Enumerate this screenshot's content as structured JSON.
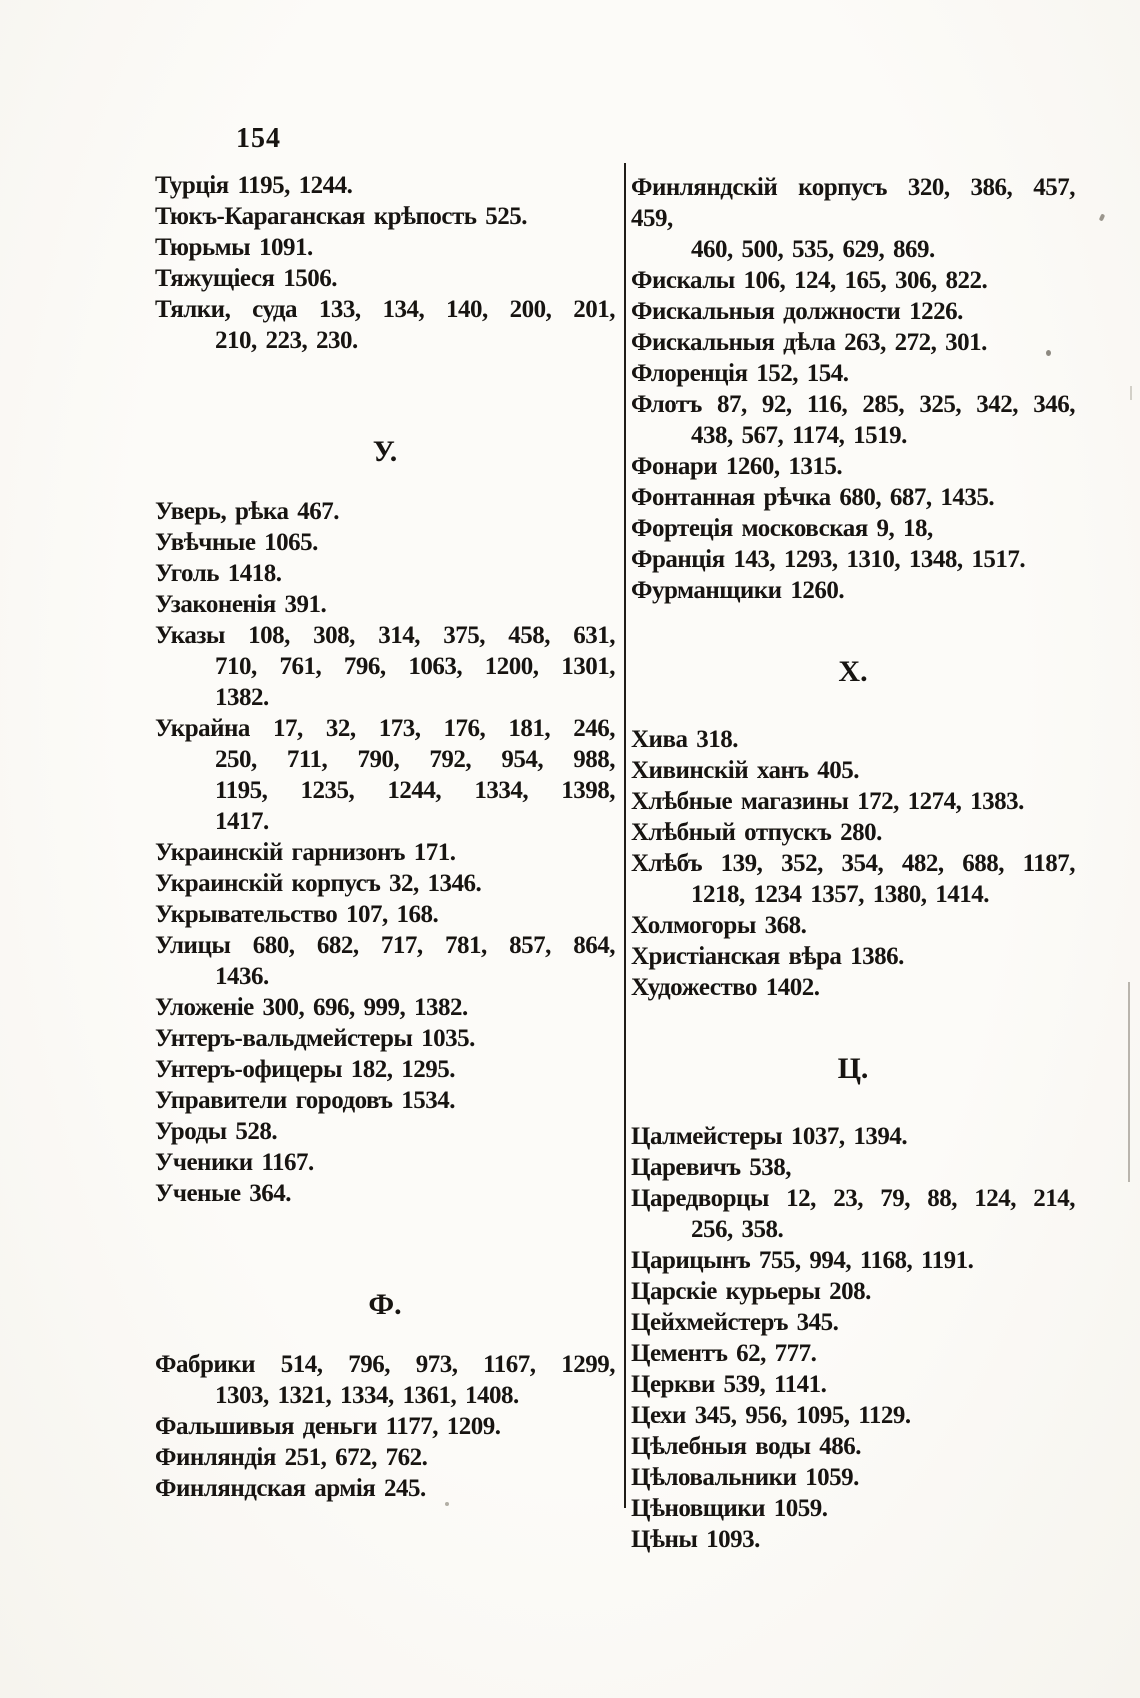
{
  "page": {
    "number": "154",
    "colors": {
      "paper": "#fbfaf6",
      "ink": "#171411"
    }
  },
  "columns": [
    {
      "name": "left",
      "blocks": [
        {
          "type": "entry",
          "lines": [
            {
              "text": "Турція 1195, 1244.",
              "indent": false,
              "justified": false
            }
          ]
        },
        {
          "type": "entry",
          "lines": [
            {
              "text": "Тюкъ-Караганская крѣпость 525.",
              "indent": false,
              "justified": false
            }
          ]
        },
        {
          "type": "entry",
          "lines": [
            {
              "text": "Тюрьмы 1091.",
              "indent": false,
              "justified": false
            }
          ]
        },
        {
          "type": "entry",
          "lines": [
            {
              "text": "Тяжущіеся 1506.",
              "indent": false,
              "justified": false
            }
          ]
        },
        {
          "type": "entry",
          "lines": [
            {
              "text": "Тялки, суда 133, 134, 140, 200, 201,",
              "indent": false,
              "justified": true
            },
            {
              "text": "210, 223, 230.",
              "indent": true,
              "justified": false
            }
          ]
        },
        {
          "type": "heading",
          "text": "У."
        },
        {
          "type": "entry",
          "lines": [
            {
              "text": "Уверь, рѣка 467.",
              "indent": false,
              "justified": false
            }
          ]
        },
        {
          "type": "entry",
          "lines": [
            {
              "text": "Увѣчные 1065.",
              "indent": false,
              "justified": false
            }
          ]
        },
        {
          "type": "entry",
          "lines": [
            {
              "text": "Уголь 1418.",
              "indent": false,
              "justified": false
            }
          ]
        },
        {
          "type": "entry",
          "lines": [
            {
              "text": "Узаконенія 391.",
              "indent": false,
              "justified": false
            }
          ]
        },
        {
          "type": "entry",
          "lines": [
            {
              "text": "Указы 108, 308, 314, 375, 458, 631,",
              "indent": false,
              "justified": true
            },
            {
              "text": "710, 761, 796, 1063, 1200, 1301,",
              "indent": true,
              "justified": true
            },
            {
              "text": "1382.",
              "indent": true,
              "justified": false
            }
          ]
        },
        {
          "type": "entry",
          "lines": [
            {
              "text": "Украйна 17, 32, 173, 176, 181, 246,",
              "indent": false,
              "justified": true
            },
            {
              "text": "250, 711, 790, 792, 954, 988,",
              "indent": true,
              "justified": true
            },
            {
              "text": "1195, 1235, 1244, 1334, 1398,",
              "indent": true,
              "justified": true
            },
            {
              "text": "1417.",
              "indent": true,
              "justified": false
            }
          ]
        },
        {
          "type": "entry",
          "lines": [
            {
              "text": "Украинскій гарнизонъ 171.",
              "indent": false,
              "justified": false
            }
          ]
        },
        {
          "type": "entry",
          "lines": [
            {
              "text": "Украинскій корпусъ 32, 1346.",
              "indent": false,
              "justified": false
            }
          ]
        },
        {
          "type": "entry",
          "lines": [
            {
              "text": "Укрывательство 107, 168.",
              "indent": false,
              "justified": false
            }
          ]
        },
        {
          "type": "entry",
          "lines": [
            {
              "text": "Улицы 680, 682, 717, 781, 857, 864,",
              "indent": false,
              "justified": true
            },
            {
              "text": "1436.",
              "indent": true,
              "justified": false
            }
          ]
        },
        {
          "type": "entry",
          "lines": [
            {
              "text": "Уложеніе 300, 696, 999, 1382.",
              "indent": false,
              "justified": false
            }
          ]
        },
        {
          "type": "entry",
          "lines": [
            {
              "text": "Унтеръ-вальдмейстеры 1035.",
              "indent": false,
              "justified": false
            }
          ]
        },
        {
          "type": "entry",
          "lines": [
            {
              "text": "Унтеръ-офицеры 182, 1295.",
              "indent": false,
              "justified": false
            }
          ]
        },
        {
          "type": "entry",
          "lines": [
            {
              "text": "Управители городовъ 1534.",
              "indent": false,
              "justified": false
            }
          ]
        },
        {
          "type": "entry",
          "lines": [
            {
              "text": "Уроды 528.",
              "indent": false,
              "justified": false
            }
          ]
        },
        {
          "type": "entry",
          "lines": [
            {
              "text": "Ученики 1167.",
              "indent": false,
              "justified": false
            }
          ]
        },
        {
          "type": "entry",
          "lines": [
            {
              "text": "Ученые 364.",
              "indent": false,
              "justified": false
            }
          ]
        },
        {
          "type": "heading",
          "text": "Ф."
        },
        {
          "type": "entry",
          "lines": [
            {
              "text": "Фабрики 514, 796, 973, 1167, 1299,",
              "indent": false,
              "justified": true
            },
            {
              "text": "1303, 1321, 1334, 1361, 1408.",
              "indent": true,
              "justified": false
            }
          ]
        },
        {
          "type": "entry",
          "lines": [
            {
              "text": "Фальшивыя деньги 1177, 1209.",
              "indent": false,
              "justified": false
            }
          ]
        },
        {
          "type": "entry",
          "lines": [
            {
              "text": "Финляндія 251, 672, 762.",
              "indent": false,
              "justified": false
            }
          ]
        },
        {
          "type": "entry",
          "lines": [
            {
              "text": "Финляндская армія 245.",
              "indent": false,
              "justified": false
            }
          ]
        }
      ]
    },
    {
      "name": "right",
      "blocks": [
        {
          "type": "entry",
          "lines": [
            {
              "text": "Финляндскій корпусъ 320, 386, 457, 459,",
              "indent": false,
              "justified": true
            },
            {
              "text": "460, 500, 535, 629, 869.",
              "indent": true,
              "justified": false
            }
          ]
        },
        {
          "type": "entry",
          "lines": [
            {
              "text": "Фискалы 106, 124, 165, 306, 822.",
              "indent": false,
              "justified": false
            }
          ]
        },
        {
          "type": "entry",
          "lines": [
            {
              "text": "Фискальныя должности 1226.",
              "indent": false,
              "justified": false
            }
          ]
        },
        {
          "type": "entry",
          "lines": [
            {
              "text": "Фискальныя дѣла 263, 272, 301.",
              "indent": false,
              "justified": false
            }
          ]
        },
        {
          "type": "entry",
          "lines": [
            {
              "text": "Флоренція 152, 154.",
              "indent": false,
              "justified": false
            }
          ]
        },
        {
          "type": "entry",
          "lines": [
            {
              "text": "Флотъ 87, 92, 116, 285, 325, 342, 346,",
              "indent": false,
              "justified": true
            },
            {
              "text": "438, 567, 1174, 1519.",
              "indent": true,
              "justified": false
            }
          ]
        },
        {
          "type": "entry",
          "lines": [
            {
              "text": "Фонари 1260, 1315.",
              "indent": false,
              "justified": false
            }
          ]
        },
        {
          "type": "entry",
          "lines": [
            {
              "text": "Фонтанная рѣчка 680, 687, 1435.",
              "indent": false,
              "justified": false
            }
          ]
        },
        {
          "type": "entry",
          "lines": [
            {
              "text": "Фортеція московская 9, 18,",
              "indent": false,
              "justified": false
            }
          ]
        },
        {
          "type": "entry",
          "lines": [
            {
              "text": "Франція 143, 1293, 1310, 1348, 1517.",
              "indent": false,
              "justified": false
            }
          ]
        },
        {
          "type": "entry",
          "lines": [
            {
              "text": "Фурманщики 1260.",
              "indent": false,
              "justified": false
            }
          ]
        },
        {
          "type": "heading",
          "text": "Х."
        },
        {
          "type": "entry",
          "lines": [
            {
              "text": "Хива 318.",
              "indent": false,
              "justified": false
            }
          ]
        },
        {
          "type": "entry",
          "lines": [
            {
              "text": "Хивинскій ханъ 405.",
              "indent": false,
              "justified": false
            }
          ]
        },
        {
          "type": "entry",
          "lines": [
            {
              "text": "Хлѣбные магазины 172, 1274, 1383.",
              "indent": false,
              "justified": false
            }
          ]
        },
        {
          "type": "entry",
          "lines": [
            {
              "text": "Хлѣбный отпускъ 280.",
              "indent": false,
              "justified": false
            }
          ]
        },
        {
          "type": "entry",
          "lines": [
            {
              "text": "Хлѣбъ 139, 352, 354, 482, 688, 1187,",
              "indent": false,
              "justified": true
            },
            {
              "text": "1218, 1234 1357, 1380, 1414.",
              "indent": true,
              "justified": false
            }
          ]
        },
        {
          "type": "entry",
          "lines": [
            {
              "text": "Холмогоры 368.",
              "indent": false,
              "justified": false
            }
          ]
        },
        {
          "type": "entry",
          "lines": [
            {
              "text": "Христіанская вѣра 1386.",
              "indent": false,
              "justified": false
            }
          ]
        },
        {
          "type": "entry",
          "lines": [
            {
              "text": "Художество 1402.",
              "indent": false,
              "justified": false
            }
          ]
        },
        {
          "type": "heading",
          "text": "Ц."
        },
        {
          "type": "entry",
          "lines": [
            {
              "text": "Цалмейстеры 1037, 1394.",
              "indent": false,
              "justified": false
            }
          ]
        },
        {
          "type": "entry",
          "lines": [
            {
              "text": "Царевичъ 538,",
              "indent": false,
              "justified": false
            }
          ]
        },
        {
          "type": "entry",
          "lines": [
            {
              "text": "Царедворцы 12, 23, 79, 88, 124, 214,",
              "indent": false,
              "justified": true
            },
            {
              "text": "256, 358.",
              "indent": true,
              "justified": false
            }
          ]
        },
        {
          "type": "entry",
          "lines": [
            {
              "text": "Царицынъ 755, 994, 1168, 1191.",
              "indent": false,
              "justified": false
            }
          ]
        },
        {
          "type": "entry",
          "lines": [
            {
              "text": "Царскіе курьеры 208.",
              "indent": false,
              "justified": false
            }
          ]
        },
        {
          "type": "entry",
          "lines": [
            {
              "text": "Цейхмейстеръ 345.",
              "indent": false,
              "justified": false
            }
          ]
        },
        {
          "type": "entry",
          "lines": [
            {
              "text": "Цементъ 62, 777.",
              "indent": false,
              "justified": false
            }
          ]
        },
        {
          "type": "entry",
          "lines": [
            {
              "text": "Церкви 539, 1141.",
              "indent": false,
              "justified": false
            }
          ]
        },
        {
          "type": "entry",
          "lines": [
            {
              "text": "Цехи 345, 956, 1095, 1129.",
              "indent": false,
              "justified": false
            }
          ]
        },
        {
          "type": "entry",
          "lines": [
            {
              "text": "Цѣлебныя воды 486.",
              "indent": false,
              "justified": false
            }
          ]
        },
        {
          "type": "entry",
          "lines": [
            {
              "text": "Цѣловальники 1059.",
              "indent": false,
              "justified": false
            }
          ]
        },
        {
          "type": "entry",
          "lines": [
            {
              "text": "Цѣновщики 1059.",
              "indent": false,
              "justified": false
            }
          ]
        },
        {
          "type": "entry",
          "lines": [
            {
              "text": "Цѣны 1093.",
              "indent": false,
              "justified": false
            }
          ]
        }
      ]
    }
  ]
}
